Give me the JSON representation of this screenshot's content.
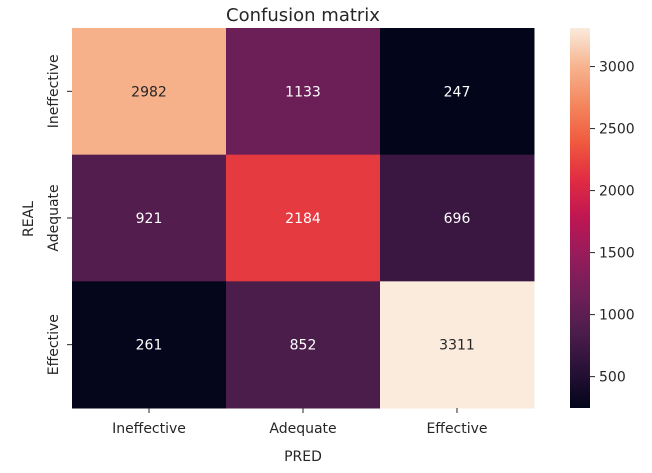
{
  "chart_data": {
    "type": "heatmap",
    "title": "Confusion matrix",
    "xlabel": "PRED",
    "ylabel": "REAL",
    "x_categories": [
      "Ineffective",
      "Adequate",
      "Effective"
    ],
    "y_categories": [
      "Ineffective",
      "Adequate",
      "Effective"
    ],
    "values": [
      [
        2982,
        1133,
        247
      ],
      [
        921,
        2184,
        696
      ],
      [
        261,
        852,
        3311
      ]
    ],
    "colorbar": {
      "ticks": [
        500,
        1000,
        1500,
        2000,
        2500,
        3000
      ],
      "range": [
        247,
        3311
      ],
      "colormap": "rocket"
    },
    "text_color_dark": "#262626",
    "text_color_light": "#ffffff"
  }
}
